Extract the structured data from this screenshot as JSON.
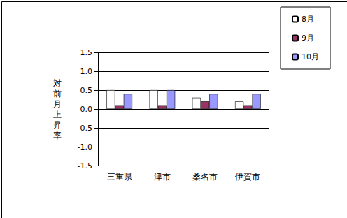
{
  "chart_data": {
    "type": "bar",
    "y_label": "対前月上昇率",
    "categories": [
      "三重県",
      "津市",
      "桑名市",
      "伊賀市"
    ],
    "series": [
      {
        "name": "8月",
        "color": "#ffffff",
        "values": [
          0.5,
          0.5,
          0.3,
          0.2
        ]
      },
      {
        "name": "9月",
        "color": "#993366",
        "values": [
          0.1,
          0.1,
          0.2,
          0.1
        ]
      },
      {
        "name": "10月",
        "color": "#9999ff",
        "values": [
          0.4,
          0.5,
          0.4,
          0.4
        ]
      }
    ],
    "ylim": [
      -1.5,
      1.5
    ],
    "yticks": [
      -1.5,
      {
        "value": -1.0,
        "label": "-1.0"
      },
      -0.5,
      {
        "value": 0,
        "label": "0.0"
      },
      0.5,
      {
        "value": 1.0,
        "label": "1.0"
      },
      1.5
    ],
    "grid": true,
    "legend": "top-right"
  }
}
